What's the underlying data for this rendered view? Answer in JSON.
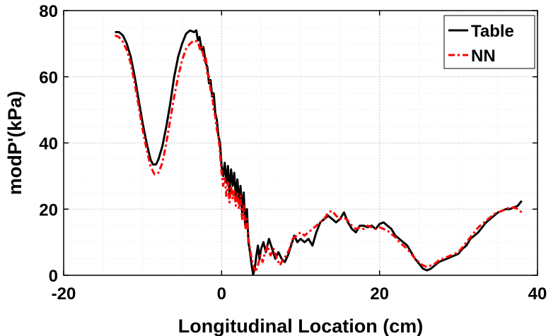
{
  "chart_data": {
    "type": "line",
    "xlabel": "Longitudinal Location (cm)",
    "ylabel": "modP'(kPa)",
    "xlim": [
      -20,
      40
    ],
    "ylim": [
      0,
      80
    ],
    "xticks": [
      -20,
      0,
      20,
      40
    ],
    "yticks": [
      0,
      20,
      40,
      60,
      80
    ],
    "grid": true,
    "legend_position": "top-right",
    "series": [
      {
        "name": "Table",
        "color": "#000000",
        "style": "solid",
        "points": [
          [
            -13.5,
            73.5
          ],
          [
            -13.0,
            73.5
          ],
          [
            -12.5,
            72.5
          ],
          [
            -12.0,
            70
          ],
          [
            -11.5,
            66
          ],
          [
            -11.0,
            60
          ],
          [
            -10.5,
            53
          ],
          [
            -10.0,
            46
          ],
          [
            -9.5,
            40
          ],
          [
            -9.0,
            35
          ],
          [
            -8.7,
            33.5
          ],
          [
            -8.3,
            33.5
          ],
          [
            -8.0,
            35
          ],
          [
            -7.5,
            39
          ],
          [
            -7.0,
            45
          ],
          [
            -6.5,
            52
          ],
          [
            -6.0,
            60
          ],
          [
            -5.5,
            66
          ],
          [
            -5.0,
            70
          ],
          [
            -4.5,
            73
          ],
          [
            -4.0,
            74
          ],
          [
            -3.5,
            73.5
          ],
          [
            -3.2,
            74
          ],
          [
            -3.0,
            71
          ],
          [
            -2.8,
            72
          ],
          [
            -2.5,
            68
          ],
          [
            -2.3,
            69
          ],
          [
            -2.0,
            64
          ],
          [
            -1.8,
            63
          ],
          [
            -1.6,
            58
          ],
          [
            -1.4,
            59
          ],
          [
            -1.2,
            54
          ],
          [
            -1.0,
            55
          ],
          [
            -0.8,
            49
          ],
          [
            -0.6,
            47
          ],
          [
            -0.4,
            42
          ],
          [
            -0.2,
            40
          ],
          [
            0.0,
            33
          ],
          [
            0.2,
            30
          ],
          [
            0.4,
            34
          ],
          [
            0.6,
            28
          ],
          [
            0.8,
            33
          ],
          [
            1.0,
            25
          ],
          [
            1.2,
            32
          ],
          [
            1.4,
            27
          ],
          [
            1.6,
            31
          ],
          [
            1.8,
            24
          ],
          [
            2.0,
            29
          ],
          [
            2.2,
            22
          ],
          [
            2.4,
            27
          ],
          [
            2.6,
            19
          ],
          [
            2.8,
            25
          ],
          [
            3.0,
            15
          ],
          [
            3.2,
            20
          ],
          [
            3.4,
            10
          ],
          [
            3.6,
            7
          ],
          [
            3.8,
            3
          ],
          [
            4.0,
            0.2
          ],
          [
            4.2,
            2
          ],
          [
            4.4,
            6
          ],
          [
            4.6,
            9
          ],
          [
            4.8,
            5
          ],
          [
            5.0,
            8
          ],
          [
            5.3,
            10
          ],
          [
            5.6,
            7
          ],
          [
            6.0,
            11
          ],
          [
            6.4,
            8
          ],
          [
            6.8,
            5
          ],
          [
            7.2,
            7
          ],
          [
            7.6,
            5
          ],
          [
            8.0,
            4
          ],
          [
            8.4,
            6
          ],
          [
            8.8,
            9
          ],
          [
            9.2,
            12
          ],
          [
            9.6,
            10
          ],
          [
            10.0,
            11
          ],
          [
            10.5,
            10
          ],
          [
            11.0,
            11
          ],
          [
            11.5,
            9
          ],
          [
            12.0,
            13
          ],
          [
            12.5,
            16
          ],
          [
            13.0,
            17
          ],
          [
            13.5,
            18
          ],
          [
            14.0,
            17
          ],
          [
            14.5,
            16
          ],
          [
            15.0,
            17
          ],
          [
            15.5,
            19
          ],
          [
            16.0,
            16
          ],
          [
            16.5,
            14
          ],
          [
            17.0,
            13
          ],
          [
            17.5,
            15
          ],
          [
            18.0,
            15
          ],
          [
            18.5,
            14.5
          ],
          [
            19.0,
            15
          ],
          [
            19.5,
            14
          ],
          [
            20.0,
            15.5
          ],
          [
            20.5,
            16
          ],
          [
            21.0,
            15
          ],
          [
            21.5,
            14
          ],
          [
            22.0,
            12
          ],
          [
            22.5,
            11
          ],
          [
            23.0,
            10
          ],
          [
            23.5,
            9
          ],
          [
            24.0,
            7
          ],
          [
            24.5,
            5
          ],
          [
            25.0,
            3.5
          ],
          [
            25.5,
            2
          ],
          [
            26.0,
            1.5
          ],
          [
            26.5,
            2
          ],
          [
            27.0,
            3
          ],
          [
            27.5,
            4
          ],
          [
            28.0,
            4.5
          ],
          [
            28.5,
            5
          ],
          [
            29.0,
            5.5
          ],
          [
            29.5,
            6
          ],
          [
            30.0,
            6.5
          ],
          [
            30.5,
            8
          ],
          [
            31.0,
            9
          ],
          [
            31.5,
            11
          ],
          [
            32.0,
            12
          ],
          [
            32.5,
            13
          ],
          [
            33.0,
            14.5
          ],
          [
            33.5,
            16
          ],
          [
            34.0,
            17
          ],
          [
            34.5,
            18
          ],
          [
            35.0,
            19
          ],
          [
            35.5,
            19.5
          ],
          [
            36.0,
            20
          ],
          [
            36.5,
            20
          ],
          [
            37.0,
            20.5
          ],
          [
            37.5,
            21
          ],
          [
            38.0,
            22.5
          ]
        ]
      },
      {
        "name": "NN",
        "color": "#ff0000",
        "style": "dashdot",
        "points": [
          [
            -13.5,
            72.5
          ],
          [
            -13.0,
            72
          ],
          [
            -12.5,
            70.5
          ],
          [
            -12.0,
            68
          ],
          [
            -11.5,
            64
          ],
          [
            -11.0,
            58
          ],
          [
            -10.5,
            51
          ],
          [
            -10.0,
            44
          ],
          [
            -9.5,
            38
          ],
          [
            -9.0,
            33
          ],
          [
            -8.5,
            30.5
          ],
          [
            -8.0,
            31
          ],
          [
            -7.5,
            34
          ],
          [
            -7.0,
            40
          ],
          [
            -6.5,
            47
          ],
          [
            -6.0,
            54
          ],
          [
            -5.5,
            60
          ],
          [
            -5.0,
            65
          ],
          [
            -4.5,
            68.5
          ],
          [
            -4.0,
            70
          ],
          [
            -3.5,
            71
          ],
          [
            -3.0,
            70.5
          ],
          [
            -2.7,
            68
          ],
          [
            -2.5,
            69
          ],
          [
            -2.2,
            65
          ],
          [
            -2.0,
            66
          ],
          [
            -1.8,
            61
          ],
          [
            -1.6,
            60
          ],
          [
            -1.4,
            56
          ],
          [
            -1.2,
            55
          ],
          [
            -1.0,
            50
          ],
          [
            -0.8,
            48
          ],
          [
            -0.6,
            44
          ],
          [
            -0.4,
            42
          ],
          [
            -0.2,
            37
          ],
          [
            0.0,
            31
          ],
          [
            0.2,
            27
          ],
          [
            0.4,
            30
          ],
          [
            0.6,
            24
          ],
          [
            0.8,
            28
          ],
          [
            1.0,
            22
          ],
          [
            1.2,
            27
          ],
          [
            1.4,
            23
          ],
          [
            1.6,
            26
          ],
          [
            1.8,
            21
          ],
          [
            2.0,
            25
          ],
          [
            2.2,
            20
          ],
          [
            2.4,
            24
          ],
          [
            2.6,
            17
          ],
          [
            2.8,
            21
          ],
          [
            3.0,
            14
          ],
          [
            3.2,
            17
          ],
          [
            3.4,
            11
          ],
          [
            3.6,
            8
          ],
          [
            3.8,
            5
          ],
          [
            4.0,
            3
          ],
          [
            4.3,
            1
          ],
          [
            4.6,
            3
          ],
          [
            4.9,
            6
          ],
          [
            5.2,
            4
          ],
          [
            5.5,
            7
          ],
          [
            5.8,
            9
          ],
          [
            6.2,
            6
          ],
          [
            6.6,
            8
          ],
          [
            7.0,
            5
          ],
          [
            7.4,
            3
          ],
          [
            7.8,
            5
          ],
          [
            8.2,
            6
          ],
          [
            8.6,
            8
          ],
          [
            9.0,
            11
          ],
          [
            9.5,
            12
          ],
          [
            10.0,
            13
          ],
          [
            10.5,
            12
          ],
          [
            11.0,
            13
          ],
          [
            11.5,
            14
          ],
          [
            12.0,
            15
          ],
          [
            12.5,
            16
          ],
          [
            13.0,
            17
          ],
          [
            13.5,
            19
          ],
          [
            14.0,
            19.5
          ],
          [
            14.5,
            18
          ],
          [
            15.0,
            17
          ],
          [
            15.5,
            17.5
          ],
          [
            16.0,
            16.5
          ],
          [
            16.5,
            15
          ],
          [
            17.0,
            14
          ],
          [
            17.5,
            14.5
          ],
          [
            18.0,
            14
          ],
          [
            18.5,
            15
          ],
          [
            19.0,
            14.5
          ],
          [
            19.5,
            14
          ],
          [
            20.0,
            14.5
          ],
          [
            20.5,
            14
          ],
          [
            21.0,
            13.5
          ],
          [
            21.5,
            12.5
          ],
          [
            22.0,
            11.5
          ],
          [
            22.5,
            10
          ],
          [
            23.0,
            9
          ],
          [
            23.5,
            8
          ],
          [
            24.0,
            6.5
          ],
          [
            24.5,
            5
          ],
          [
            25.0,
            4
          ],
          [
            25.5,
            3
          ],
          [
            26.0,
            2.5
          ],
          [
            26.5,
            3
          ],
          [
            27.0,
            3.5
          ],
          [
            27.5,
            4.5
          ],
          [
            28.0,
            5
          ],
          [
            28.5,
            5.5
          ],
          [
            29.0,
            6
          ],
          [
            29.5,
            6.5
          ],
          [
            30.0,
            7
          ],
          [
            30.5,
            8.5
          ],
          [
            31.0,
            10
          ],
          [
            31.5,
            11.5
          ],
          [
            32.0,
            13
          ],
          [
            32.5,
            14.5
          ],
          [
            33.0,
            15.5
          ],
          [
            33.5,
            16.5
          ],
          [
            34.0,
            17.5
          ],
          [
            34.5,
            18.5
          ],
          [
            35.0,
            19
          ],
          [
            35.5,
            19.5
          ],
          [
            36.0,
            20
          ],
          [
            36.5,
            20.5
          ],
          [
            37.0,
            20.5
          ],
          [
            37.5,
            20
          ],
          [
            38.0,
            19
          ]
        ]
      }
    ]
  }
}
